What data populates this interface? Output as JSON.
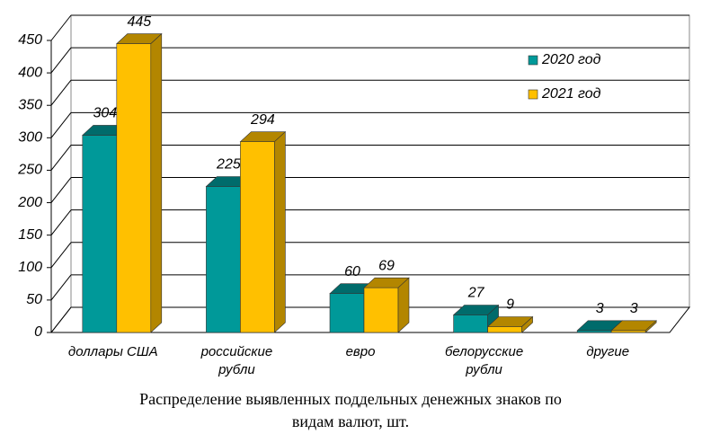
{
  "chart_data": {
    "type": "bar3d",
    "title": "Распределение выявленных поддельных денежных знаков по видам валют, шт.",
    "categories": [
      "доллары США",
      "российские рубли",
      "евро",
      "белорусские рубли",
      "другие"
    ],
    "series": [
      {
        "name": "2020 год",
        "color": "#009999",
        "values": [
          304,
          225,
          60,
          27,
          3
        ]
      },
      {
        "name": "2021 год",
        "color": "#ffc000",
        "values": [
          445,
          294,
          69,
          9,
          3
        ]
      }
    ],
    "ylim": [
      0,
      450
    ],
    "yticks": [
      0,
      50,
      100,
      150,
      200,
      250,
      300,
      350,
      400,
      450
    ],
    "grid": true
  }
}
